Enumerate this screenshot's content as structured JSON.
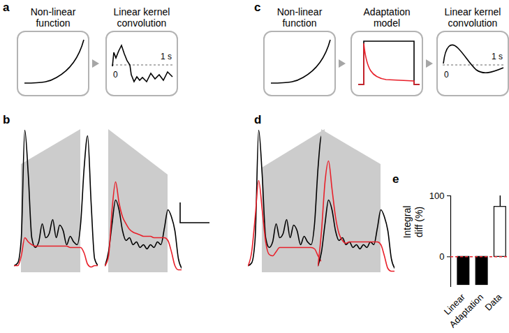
{
  "panel_labels": [
    "a",
    "b",
    "c",
    "d",
    "e"
  ],
  "diagrams": [
    {
      "boxes": [
        {
          "lines": [
            "Non-linear",
            "function"
          ]
        },
        {
          "lines": [
            "Linear kernel",
            "convolution"
          ],
          "axis_labels": [
            "0",
            "1 s"
          ]
        }
      ]
    },
    {
      "boxes": [
        {
          "lines": [
            "Non-linear",
            "function"
          ]
        },
        {
          "lines": [
            "Adaptation",
            "model"
          ]
        },
        {
          "lines": [
            "Linear kernel",
            "convolution"
          ],
          "axis_labels": [
            "0",
            "1 s"
          ]
        }
      ]
    }
  ],
  "chart_data": [
    {
      "type": "line",
      "x": [
        0,
        1,
        2,
        3,
        4,
        5,
        6,
        7,
        8,
        9,
        10,
        11,
        12,
        13,
        14,
        15,
        16,
        17,
        18,
        19,
        20,
        21,
        22,
        23,
        24
      ],
      "series": [
        {
          "color": "#000000",
          "values": [
            0.5,
            0.7,
            2.5,
            10.2,
            7,
            2.5,
            1.8,
            2.2,
            3.5,
            2.5,
            2.8,
            3.8,
            2.5,
            3.4,
            3.0,
            2.0,
            2.6,
            2.2,
            2.0,
            3.5,
            7.5,
            9.8,
            5,
            1,
            0.5
          ]
        },
        {
          "color": "#e8202a",
          "values": [
            0.5,
            0.5,
            1.2,
            2.5,
            2.2,
            2.0,
            1.9,
            1.9,
            1.9,
            1.9,
            1.9,
            1.9,
            1.9,
            1.9,
            1.9,
            1.9,
            1.8,
            1.8,
            1.8,
            1.8,
            1.4,
            0.6,
            0.4,
            0.5,
            0.5
          ]
        }
      ],
      "stimulus": {
        "x": [
          2,
          19
        ],
        "values": [
          7.75,
          10.25
        ],
        "color": "#cccccc"
      },
      "xlim": [
        0,
        24
      ],
      "ylim": [
        0,
        10.5
      ],
      "tick_labels": false
    },
    {
      "type": "line",
      "x": [
        0,
        1,
        2,
        3,
        4,
        5,
        6,
        7,
        8,
        9,
        10,
        11,
        12,
        13,
        14,
        15,
        16,
        17,
        18,
        19,
        20,
        21,
        22
      ],
      "series": [
        {
          "color": "#000000",
          "values": [
            0.5,
            1.5,
            3.5,
            5.2,
            4.5,
            3.0,
            2.3,
            2.5,
            2.0,
            2.2,
            1.8,
            2.0,
            1.7,
            2.0,
            1.8,
            2.2,
            2.0,
            3.2,
            4.5,
            4.0,
            3.0,
            1.0,
            0.3
          ]
        },
        {
          "color": "#e8202a",
          "values": [
            0.5,
            1.2,
            4.5,
            6.5,
            5.0,
            4.0,
            3.5,
            3.1,
            2.9,
            2.8,
            2.7,
            2.6,
            2.6,
            2.6,
            2.5,
            2.5,
            2.5,
            2.5,
            2.3,
            1.5,
            0.5,
            0.2,
            0.2
          ]
        }
      ],
      "stimulus": {
        "x": [
          1,
          18
        ],
        "values": [
          10.25,
          7.0
        ],
        "color": "#cccccc"
      },
      "xlim": [
        0,
        22
      ],
      "ylim": [
        0,
        10.5
      ],
      "tick_labels": false
    },
    {
      "type": "line",
      "x": [
        0,
        1,
        2,
        3,
        4,
        5,
        6,
        7,
        8,
        9,
        10,
        11,
        12,
        13,
        14,
        15,
        16,
        17,
        18,
        19,
        20,
        21,
        22,
        23,
        24
      ],
      "series": [
        {
          "color": "#000000",
          "values": [
            0.5,
            0.7,
            2.5,
            10.2,
            7,
            2.5,
            1.8,
            2.2,
            3.5,
            2.5,
            2.8,
            3.8,
            2.5,
            3.4,
            3.0,
            2.0,
            2.6,
            2.2,
            2.0,
            3.5,
            7.5,
            9.8,
            5,
            1,
            0.5
          ]
        },
        {
          "color": "#e8202a",
          "values": [
            0.5,
            1.5,
            4.0,
            6.6,
            4.5,
            2.2,
            1.3,
            1.2,
            1.5,
            1.8,
            1.8,
            1.8,
            1.8,
            1.8,
            1.8,
            1.8,
            1.8,
            1.8,
            1.8,
            1.7,
            1.2,
            0.8,
            0.6,
            0.6,
            0.6
          ]
        }
      ],
      "stimulus": {
        "x": [
          4,
          22
        ],
        "values": [
          7.5,
          10.25
        ],
        "color": "#cccccc"
      },
      "xlim": [
        0,
        24
      ],
      "ylim": [
        0,
        10.5
      ],
      "tick_labels": false
    },
    {
      "type": "line",
      "x": [
        0,
        1,
        2,
        3,
        4,
        5,
        6,
        7,
        8,
        9,
        10,
        11,
        12,
        13,
        14,
        15,
        16,
        17,
        18,
        19,
        20,
        21,
        22
      ],
      "series": [
        {
          "color": "#000000",
          "values": [
            0.5,
            1.5,
            3.5,
            5.2,
            4.5,
            3.0,
            2.3,
            2.5,
            2.0,
            2.2,
            1.8,
            2.0,
            1.7,
            2.0,
            1.8,
            2.2,
            2.0,
            3.2,
            4.5,
            4.0,
            3.0,
            1.0,
            0.3
          ]
        },
        {
          "color": "#e8202a",
          "values": [
            0.5,
            3.0,
            6.5,
            8.0,
            6.0,
            4.0,
            2.8,
            2.3,
            2.1,
            2.2,
            2.2,
            2.2,
            2.2,
            2.2,
            2.2,
            2.2,
            2.2,
            2.2,
            2.0,
            1.2,
            0.3,
            0.1,
            0.1
          ]
        }
      ],
      "stimulus": {
        "x": [
          1,
          18
        ],
        "values": [
          10.25,
          7.75
        ],
        "color": "#cccccc"
      },
      "xlim": [
        0,
        22
      ],
      "ylim": [
        0,
        10.5
      ],
      "tick_labels": false
    },
    {
      "type": "bar",
      "categories": [
        "Linear",
        "Adaptation",
        "Data"
      ],
      "values": [
        -46,
        -46,
        82
      ],
      "errors": [
        null,
        null,
        18
      ],
      "colors": [
        "#000000",
        "#000000",
        "#ffffff"
      ],
      "ylabel": [
        "Integral",
        "diff (%)"
      ],
      "ylim": [
        -50,
        100
      ],
      "yticks": [
        0,
        100
      ],
      "reference_line": {
        "value": 0,
        "color": "#e8202a",
        "line_style": "dashed"
      }
    }
  ]
}
